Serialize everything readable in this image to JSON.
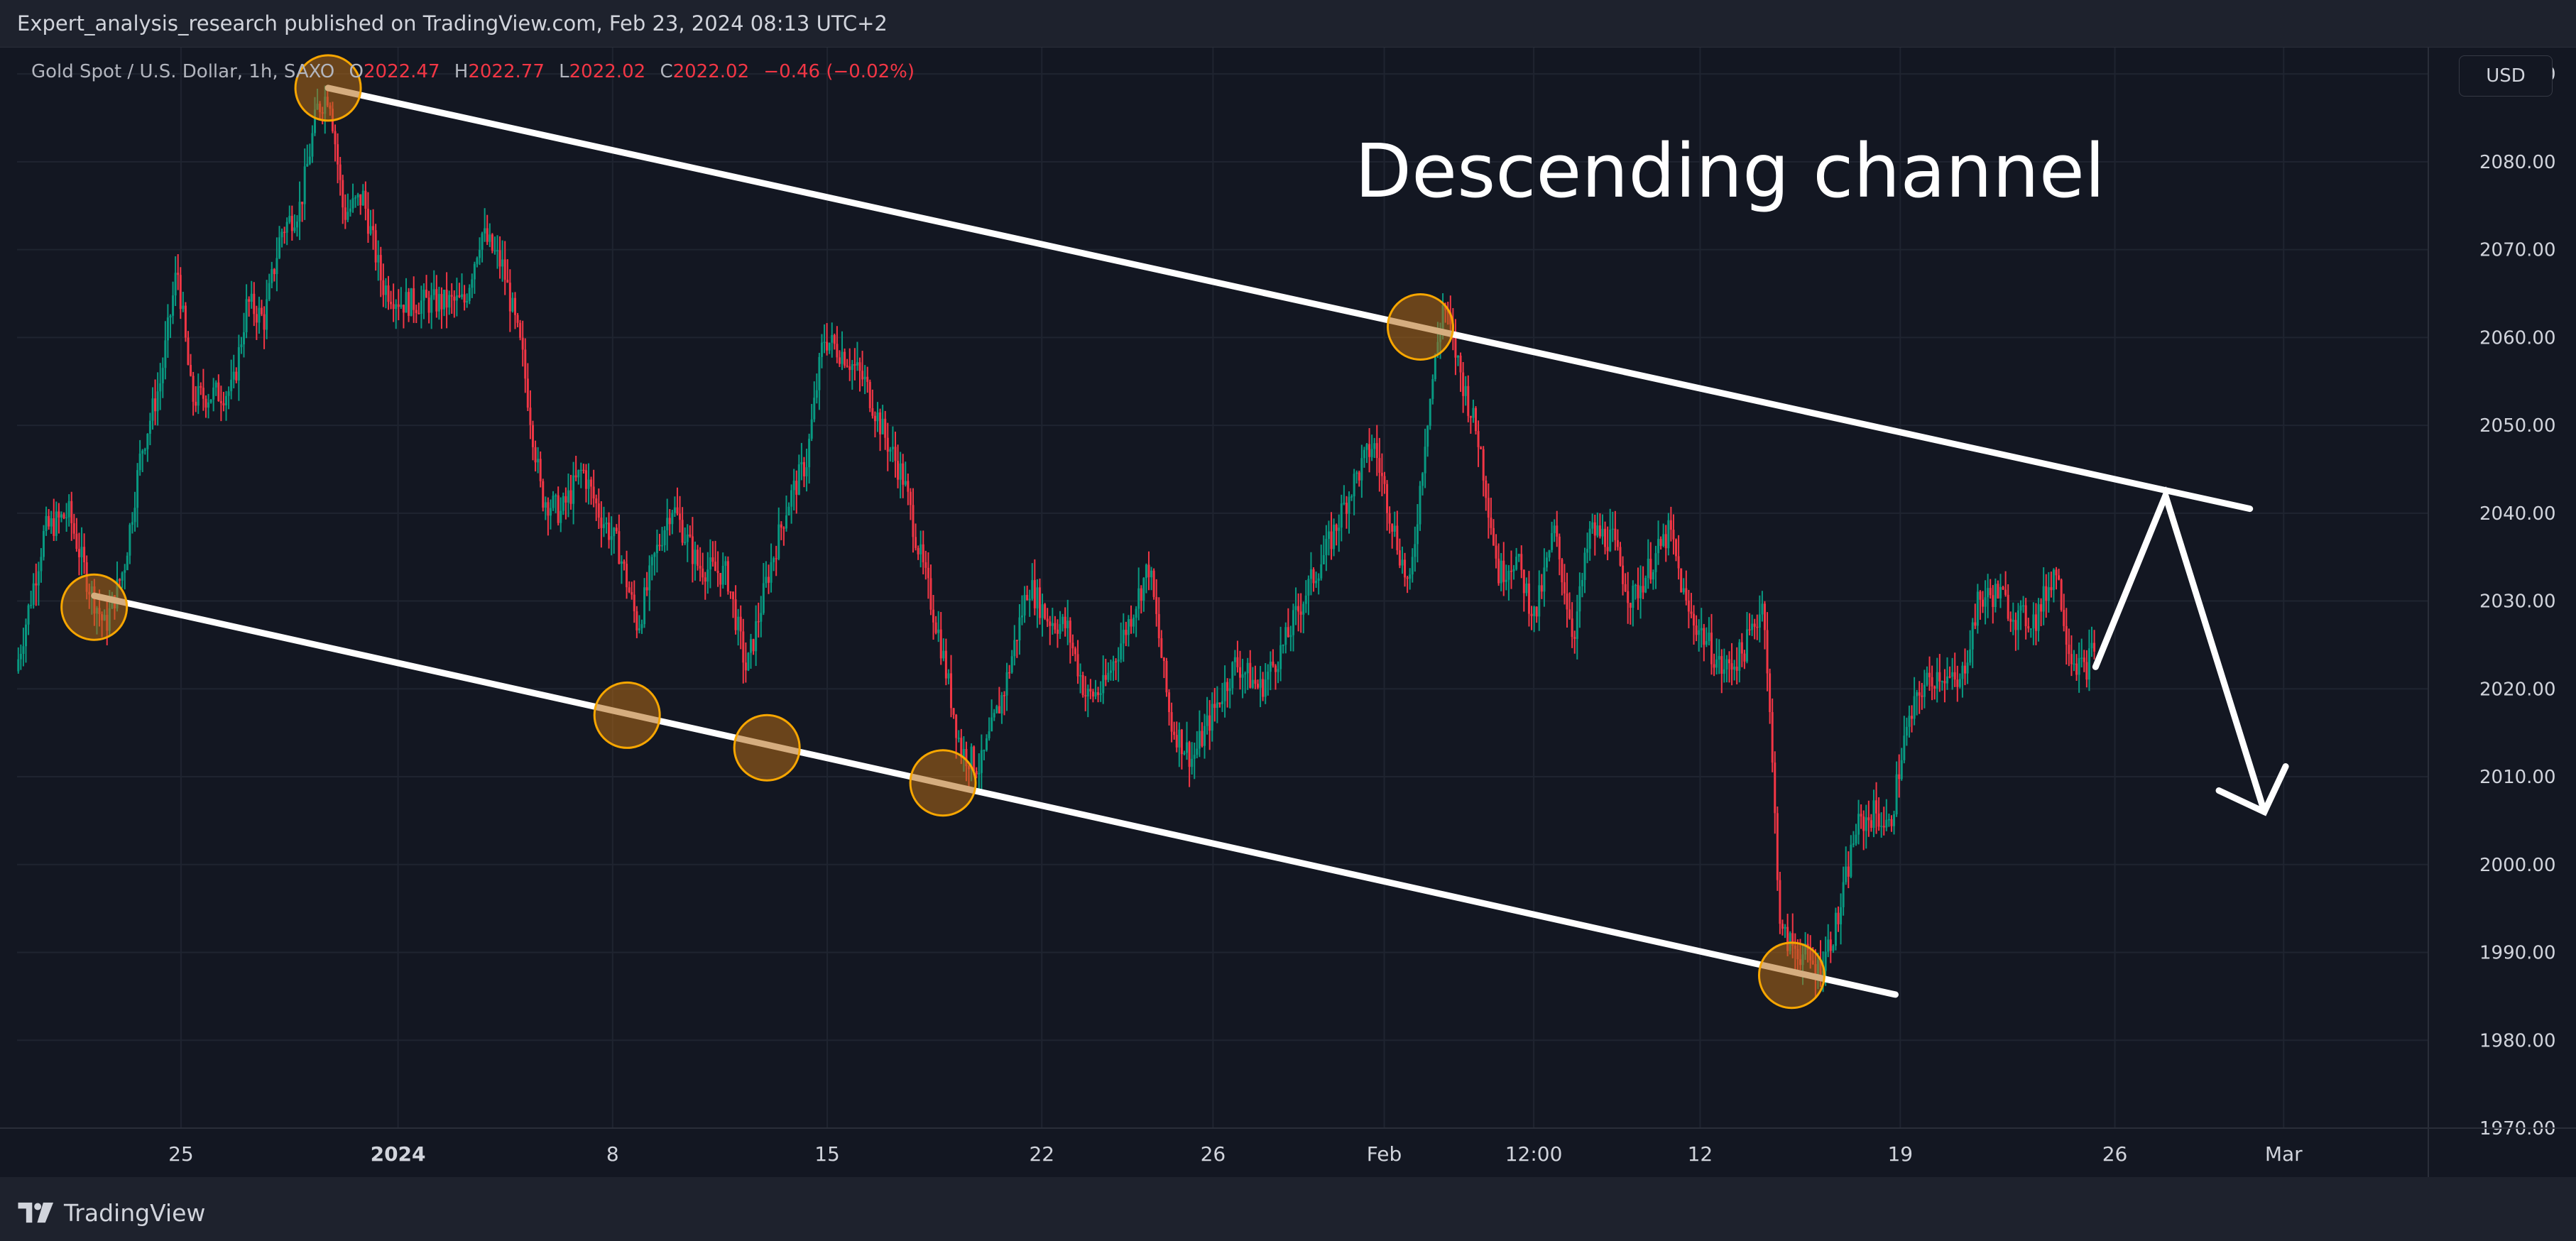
{
  "header": {
    "published_line": "Expert_analysis_research published on TradingView.com, Feb 23, 2024 08:13 UTC+2"
  },
  "legend": {
    "symbol": "Gold Spot / U.S. Dollar, 1h, SAXO",
    "open_label": "O",
    "open": "2022.47",
    "high_label": "H",
    "high": "2022.77",
    "low_label": "L",
    "low": "2022.02",
    "close_label": "C",
    "close": "2022.02",
    "change": "−0.46 (−0.02%)"
  },
  "currency_button": "USD",
  "annotation": {
    "title": "Descending channel"
  },
  "footer": {
    "brand": "TradingView"
  },
  "colors": {
    "up": "#089981",
    "down": "#f23645",
    "background": "#131722",
    "grid": "#1f2430",
    "channel_line": "#ffffff",
    "marker_fill": "#b26a16",
    "marker_stroke": "#f7a600",
    "axis_text": "#d1d4dc"
  },
  "chart_data": {
    "type": "line",
    "subtype": "candlestick",
    "title": "Gold Spot / U.S. Dollar, 1h, SAXO",
    "ylabel": "USD",
    "ylim": [
      1970,
      2093
    ],
    "xlim": [
      0,
      100
    ],
    "grid": true,
    "y_ticks": [
      "1970.00",
      "1980.00",
      "1990.00",
      "2000.00",
      "2010.00",
      "2020.00",
      "2030.00",
      "2040.00",
      "2050.00",
      "2060.00",
      "2070.00",
      "2080.00",
      "2090.00"
    ],
    "x_ticks": [
      {
        "label": "25",
        "x": 6.8,
        "bold": false
      },
      {
        "label": "2024",
        "x": 15.8,
        "bold": true
      },
      {
        "label": "8",
        "x": 24.7,
        "bold": false
      },
      {
        "label": "15",
        "x": 33.6,
        "bold": false
      },
      {
        "label": "22",
        "x": 42.5,
        "bold": false
      },
      {
        "label": "26",
        "x": 49.6,
        "bold": false
      },
      {
        "label": "Feb",
        "x": 56.7,
        "bold": false
      },
      {
        "label": "12:00",
        "x": 62.9,
        "bold": false
      },
      {
        "label": "12",
        "x": 69.8,
        "bold": false
      },
      {
        "label": "19",
        "x": 78.1,
        "bold": false
      },
      {
        "label": "26",
        "x": 87.0,
        "bold": false
      },
      {
        "label": "Mar",
        "x": 94.0,
        "bold": false
      }
    ],
    "price_path": [
      [
        0.0,
        2022
      ],
      [
        1.2,
        2038
      ],
      [
        2.2,
        2040
      ],
      [
        3.0,
        2032
      ],
      [
        3.7,
        2027
      ],
      [
        4.5,
        2034
      ],
      [
        5.2,
        2047
      ],
      [
        6.0,
        2055
      ],
      [
        6.7,
        2068
      ],
      [
        7.3,
        2053
      ],
      [
        9.0,
        2054
      ],
      [
        9.6,
        2064
      ],
      [
        10.3,
        2062
      ],
      [
        11.0,
        2072
      ],
      [
        11.8,
        2075
      ],
      [
        12.5,
        2086
      ],
      [
        13.0,
        2088
      ],
      [
        13.6,
        2074
      ],
      [
        14.4,
        2076
      ],
      [
        15.2,
        2066
      ],
      [
        16.0,
        2064
      ],
      [
        17.3,
        2064
      ],
      [
        18.6,
        2064
      ],
      [
        19.3,
        2072
      ],
      [
        20.2,
        2068
      ],
      [
        21.0,
        2058
      ],
      [
        21.8,
        2042
      ],
      [
        22.6,
        2040
      ],
      [
        23.5,
        2045
      ],
      [
        24.2,
        2040
      ],
      [
        25.0,
        2036
      ],
      [
        25.8,
        2027
      ],
      [
        26.5,
        2035
      ],
      [
        27.2,
        2041
      ],
      [
        28.3,
        2034
      ],
      [
        29.5,
        2033
      ],
      [
        30.3,
        2022
      ],
      [
        31.2,
        2033
      ],
      [
        32.0,
        2041
      ],
      [
        32.8,
        2046
      ],
      [
        33.5,
        2060
      ],
      [
        34.4,
        2058
      ],
      [
        35.2,
        2055
      ],
      [
        36.0,
        2049
      ],
      [
        36.8,
        2044
      ],
      [
        37.6,
        2034
      ],
      [
        38.3,
        2026
      ],
      [
        39.2,
        2013
      ],
      [
        40.0,
        2011
      ],
      [
        41.0,
        2020
      ],
      [
        42.0,
        2032
      ],
      [
        42.8,
        2028
      ],
      [
        43.6,
        2027
      ],
      [
        44.4,
        2019
      ],
      [
        45.1,
        2020
      ],
      [
        46.2,
        2028
      ],
      [
        47.0,
        2034
      ],
      [
        47.9,
        2016
      ],
      [
        48.8,
        2012
      ],
      [
        49.6,
        2017
      ],
      [
        50.6,
        2023
      ],
      [
        51.6,
        2020
      ],
      [
        52.6,
        2025
      ],
      [
        53.5,
        2031
      ],
      [
        54.4,
        2036
      ],
      [
        55.4,
        2043
      ],
      [
        56.3,
        2048
      ],
      [
        57.0,
        2040
      ],
      [
        57.8,
        2031
      ],
      [
        58.5,
        2050
      ],
      [
        59.2,
        2064
      ],
      [
        60.0,
        2055
      ],
      [
        60.7,
        2048
      ],
      [
        61.5,
        2033
      ],
      [
        62.2,
        2035
      ],
      [
        63.0,
        2028
      ],
      [
        63.8,
        2038
      ],
      [
        64.6,
        2026
      ],
      [
        65.3,
        2038
      ],
      [
        66.2,
        2037
      ],
      [
        67.0,
        2030
      ],
      [
        67.8,
        2034
      ],
      [
        68.6,
        2038
      ],
      [
        69.3,
        2029
      ],
      [
        70.0,
        2026
      ],
      [
        70.8,
        2022
      ],
      [
        71.6,
        2024
      ],
      [
        72.5,
        2030
      ],
      [
        73.2,
        1992
      ],
      [
        74.0,
        1990
      ],
      [
        74.8,
        1988
      ],
      [
        75.6,
        1994
      ],
      [
        76.3,
        2004
      ],
      [
        77.1,
        2006
      ],
      [
        77.7,
        2004
      ],
      [
        78.3,
        2014
      ],
      [
        79.0,
        2020
      ],
      [
        79.8,
        2022
      ],
      [
        80.6,
        2020
      ],
      [
        81.4,
        2030
      ],
      [
        82.2,
        2031
      ],
      [
        83.0,
        2028
      ],
      [
        83.8,
        2028
      ],
      [
        84.6,
        2034
      ],
      [
        85.2,
        2024
      ],
      [
        85.8,
        2022
      ],
      [
        86.2,
        2025
      ]
    ],
    "upper_channel": {
      "x0": 12.9,
      "y0": 2088.4,
      "x1": 92.6,
      "y1": 2040.5
    },
    "lower_channel": {
      "x0": 3.2,
      "y0": 2030.6,
      "x1": 77.9,
      "y1": 1985.2
    },
    "projection": [
      [
        86.2,
        2022.5
      ],
      [
        89.1,
        2042
      ],
      [
        93.2,
        2006
      ]
    ],
    "touch_points": [
      {
        "x": 3.2,
        "y": 2029.3
      },
      {
        "x": 12.9,
        "y": 2088.4
      },
      {
        "x": 25.3,
        "y": 2017.0
      },
      {
        "x": 31.1,
        "y": 2013.3
      },
      {
        "x": 38.4,
        "y": 2009.3
      },
      {
        "x": 58.2,
        "y": 2061.2
      },
      {
        "x": 73.6,
        "y": 1987.4
      }
    ]
  }
}
